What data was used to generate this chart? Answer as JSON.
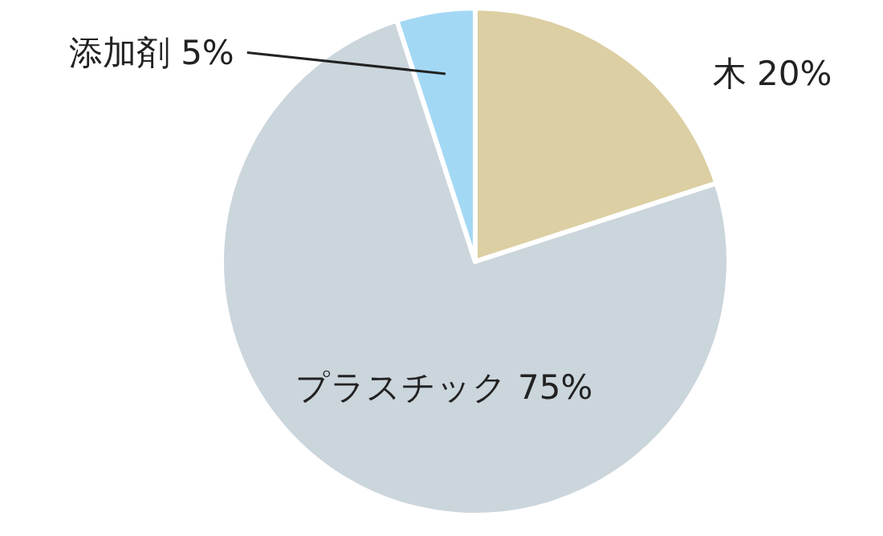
{
  "chart_data": {
    "type": "pie",
    "categories": [
      "木",
      "プラスチック",
      "添加剤"
    ],
    "values": [
      20,
      75,
      5
    ],
    "value_labels": [
      "20%",
      "75%",
      "5%"
    ],
    "colors": [
      "#dccfa3",
      "#cbd5dc",
      "#a3d8f4"
    ]
  }
}
